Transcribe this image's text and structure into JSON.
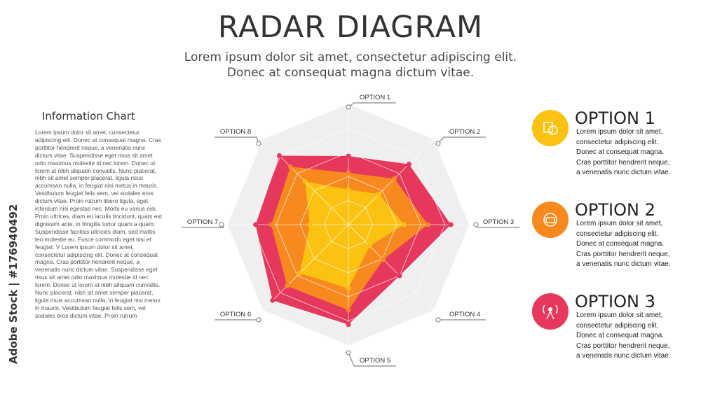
{
  "chart_data": {
    "type": "radar",
    "title": "RADAR DIAGRAM",
    "subtitle_lines": [
      "Lorem ipsum dolor sit amet, consectetur adipiscing elit.",
      "Donec at consequat magna dictum vitae."
    ],
    "categories": [
      "OPTION 1",
      "OPTION 2",
      "OPTION 3",
      "OPTION 4",
      "OPTION 5",
      "OPTION 6",
      "OPTION 7",
      "OPTION 8"
    ],
    "rlim": [
      0,
      100
    ],
    "rticks": [
      20,
      40,
      60,
      80,
      100
    ],
    "grid": true,
    "series": [
      {
        "name": "OPTION 3",
        "color": "#e6375c",
        "values": [
          57,
          71,
          85,
          60,
          83,
          89,
          77,
          81
        ],
        "description": [
          "Lorem ipsum dolor sit amet,",
          "consectetur adipiscing elit.",
          "Donec at consequat magna.",
          "Cras porttitor hendrerit neque,",
          "a venenatis nunc dictum vitae."
        ]
      },
      {
        "name": "OPTION 2",
        "color": "#f7891f",
        "values": [
          43,
          54,
          66,
          41,
          71,
          72,
          64,
          68
        ],
        "description": [
          "Lorem ipsum dolor sit amet,",
          "consectetur adipiscing elit.",
          "Donec at consequat magna.",
          "Cras porttitor hendrerit neque,",
          "a venenatis nunc dictum vitae."
        ]
      },
      {
        "name": "OPTION 1",
        "color": "#fbc212",
        "values": [
          29,
          36,
          46,
          25,
          53,
          57,
          32,
          51
        ],
        "description": [
          "Lorem ipsum dolor sit amet,",
          "consectetur adipiscing elit.",
          "Donec at consequat magna.",
          "Cras porttitor hendrerit neque,",
          "a venenatis nunc dictum vitae."
        ]
      }
    ]
  },
  "sidebar": {
    "title": "Information Chart",
    "text": "Lorem ipsum dolor sit amet, consectetur adipiscing elit. Donec at consequat magna. Cras porttitor hendrerit neque, a venenatis nunc dictum vitae. Suspendisse eget risus sit amet odio maximus molestie id nec lorem. Donec ut lorem at nibh aliquam convallis. Nunc placerat, nibh sit amet semper placerat, ligula risus accumsan nulla, in feugiat nisi metus in mauris. Vestibulum feugiat felis sem, vel sodales eros dictum vitae. Proin rutrum libero ligula, eget interdum nisi egestas nec. Morbi eu varius nisi. Proin ultrices, diam eu iaculis tincidunt, quam est dignissim ante, in fringilla tortor quam a quam. Suspendisse facilisis ultricies diam, sed mattis leo molestie eu. Fusce commodo eget nisi et feugiat. V Lorem ipsum dolor sit amet, consectetur adipiscing elit. Donec at consequat magna. Cras porttitor hendrerit neque, a venenatis nunc dictum vitae. Suspendisse eget risus sit amet odio maximus molestie id nec lorem. Donec ut lorem at nibh aliquam convallis. Nunc placerat, nibh sit amet semper placerat, ligula risus accumsan nulla, in feugiat nisi metus in mauris. Vestibulum feugiat felis sem, vel sodales eros dictum vitae. Proin rutrum"
  },
  "watermark": "Adobe Stock | #176940492"
}
